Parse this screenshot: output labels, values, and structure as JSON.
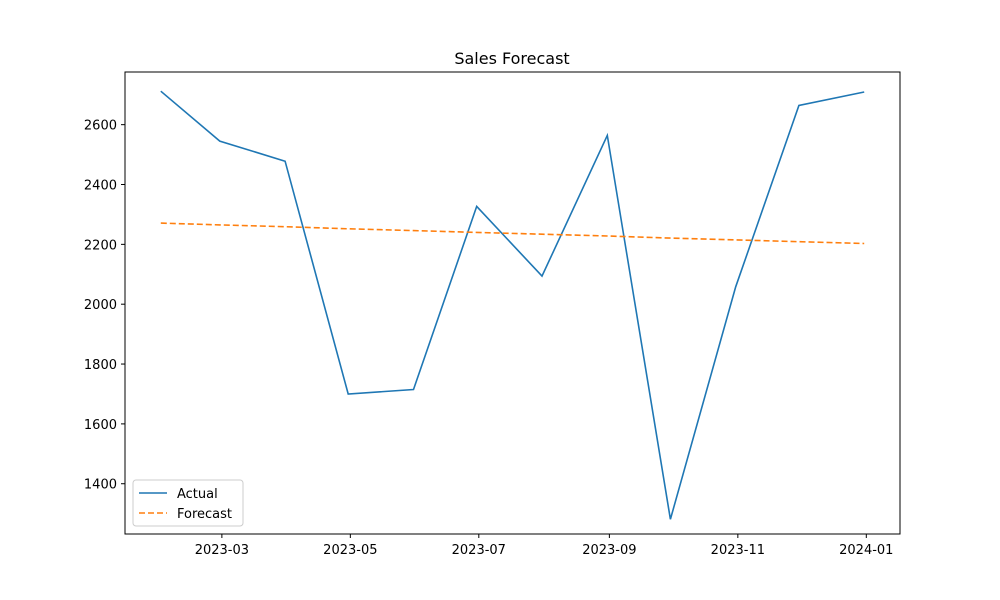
{
  "chart_data": {
    "type": "line",
    "title": "Sales Forecast",
    "xlabel": "",
    "ylabel": "",
    "x": [
      "2023-01-31",
      "2023-02-28",
      "2023-03-31",
      "2023-04-30",
      "2023-05-31",
      "2023-06-30",
      "2023-07-31",
      "2023-08-31",
      "2023-09-30",
      "2023-10-31",
      "2023-11-30",
      "2023-12-31"
    ],
    "x_ticks": [
      "2023-03",
      "2023-05",
      "2023-07",
      "2023-09",
      "2023-11",
      "2024-01"
    ],
    "x_range": [
      "2023-01-14",
      "2024-01-17"
    ],
    "y_ticks": [
      1400,
      1600,
      1800,
      2000,
      2200,
      2400,
      2600
    ],
    "ylim": [
      1232,
      2776
    ],
    "grid": false,
    "legend_position": "lower-left",
    "series": [
      {
        "name": "Actual",
        "color": "#1f77b4",
        "style": "solid",
        "values": [
          2712,
          2545,
          2478,
          1700,
          1715,
          2327,
          2094,
          2564,
          1281,
          2058,
          2664,
          2709
        ]
      },
      {
        "name": "Forecast",
        "color": "#ff7f0e",
        "style": "dashed",
        "values": [
          2271,
          2265,
          2259,
          2252,
          2246,
          2240,
          2234,
          2228,
          2221,
          2215,
          2209,
          2203
        ]
      }
    ]
  }
}
